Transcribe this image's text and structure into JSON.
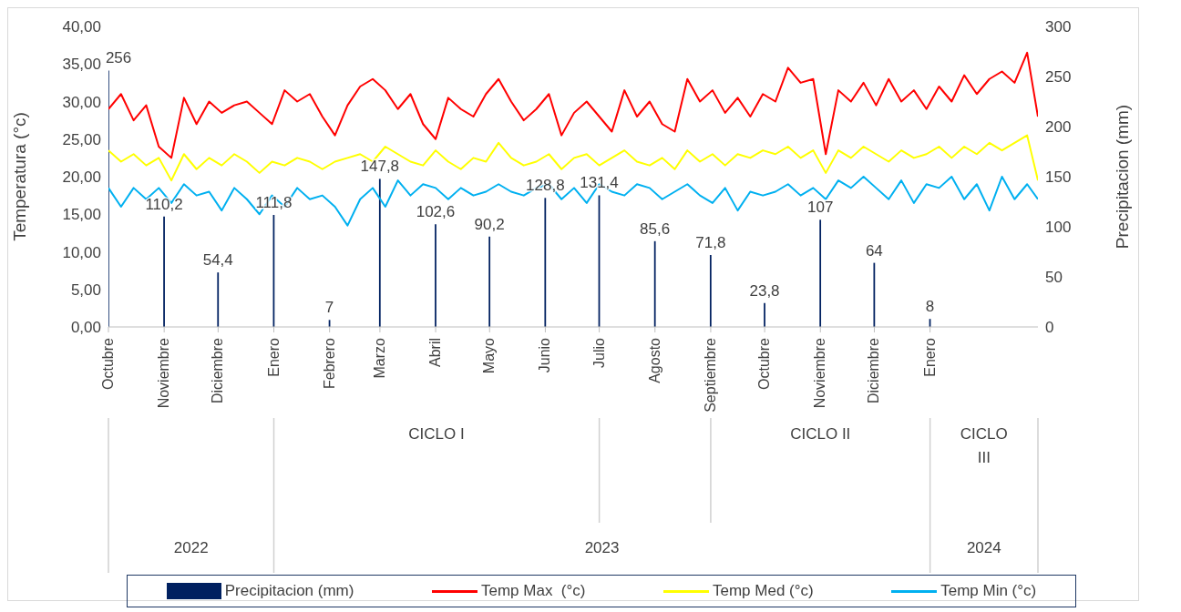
{
  "chart_data": {
    "type": "line",
    "x": [
      "2022-10-01",
      "2022-10-08",
      "2022-10-15",
      "2022-10-22",
      "2022-10-29",
      "2022-11-05",
      "2022-11-12",
      "2022-11-19",
      "2022-11-26",
      "2022-12-03",
      "2022-12-10",
      "2022-12-17",
      "2022-12-24",
      "2022-12-31",
      "2023-01-07",
      "2023-01-14",
      "2023-01-21",
      "2023-01-28",
      "2023-02-04",
      "2023-02-11",
      "2023-02-18",
      "2023-02-25",
      "2023-03-04",
      "2023-03-11",
      "2023-03-18",
      "2023-03-25",
      "2023-04-01",
      "2023-04-08",
      "2023-04-15",
      "2023-04-22",
      "2023-04-29",
      "2023-05-06",
      "2023-05-13",
      "2023-05-20",
      "2023-05-27",
      "2023-06-03",
      "2023-06-10",
      "2023-06-17",
      "2023-06-24",
      "2023-07-01",
      "2023-07-08",
      "2023-07-15",
      "2023-07-22",
      "2023-07-29",
      "2023-08-05",
      "2023-08-12",
      "2023-08-19",
      "2023-08-26",
      "2023-09-02",
      "2023-09-09",
      "2023-09-16",
      "2023-09-23",
      "2023-09-30",
      "2023-10-07",
      "2023-10-14",
      "2023-10-21",
      "2023-10-28",
      "2023-11-04",
      "2023-11-11",
      "2023-11-18",
      "2023-11-25",
      "2023-12-02",
      "2023-12-09",
      "2023-12-16",
      "2023-12-23",
      "2023-12-30",
      "2024-01-06",
      "2024-01-13",
      "2024-01-20",
      "2024-01-27",
      "2024-02-03",
      "2024-02-10",
      "2024-02-17",
      "2024-02-24",
      "2024-03-01"
    ],
    "series": [
      {
        "name": "Precipitacion (mm)",
        "type": "bar",
        "axis": "y2",
        "color": "#002060",
        "x": [
          "2022-10-01",
          "2022-11-01",
          "2022-12-01",
          "2023-01-01",
          "2023-02-01",
          "2023-03-01",
          "2023-04-01",
          "2023-05-01",
          "2023-06-01",
          "2023-07-01",
          "2023-08-01",
          "2023-09-01",
          "2023-10-01",
          "2023-11-01",
          "2023-12-01",
          "2024-01-01"
        ],
        "values": [
          256,
          110.2,
          54.4,
          111.8,
          7,
          147.8,
          102.6,
          90.2,
          128.8,
          131.4,
          85.6,
          71.8,
          23.8,
          107,
          64,
          8
        ],
        "value_labels": [
          "256",
          "110,2",
          "54,4",
          "111,8",
          "7",
          "147,8",
          "102,6",
          "90,2",
          "128,8",
          "131,4",
          "85,6",
          "71,8",
          "23,8",
          "107",
          "64",
          "8"
        ]
      },
      {
        "name": "Temp Max  (°c)",
        "color": "#ff0000",
        "values": [
          29.0,
          31.0,
          27.5,
          29.5,
          24.0,
          22.5,
          30.5,
          27.0,
          30.0,
          28.5,
          29.5,
          30.0,
          28.5,
          27.0,
          31.5,
          30.0,
          31.0,
          28.0,
          25.5,
          29.5,
          32.0,
          33.0,
          31.5,
          29.0,
          31.0,
          27.0,
          25.0,
          30.5,
          29.0,
          28.0,
          31.0,
          33.0,
          30.0,
          27.5,
          29.0,
          31.0,
          25.5,
          28.5,
          30.0,
          28.0,
          26.0,
          31.5,
          28.0,
          30.0,
          27.0,
          26.0,
          33.0,
          30.0,
          31.5,
          28.5,
          30.5,
          28.0,
          31.0,
          30.0,
          34.5,
          32.5,
          33.0,
          23.0,
          31.5,
          30.0,
          32.5,
          29.5,
          33.0,
          30.0,
          31.5,
          29.0,
          32.0,
          30.0,
          33.5,
          31.0,
          33.0,
          34.0,
          32.5,
          36.5,
          28.0
        ]
      },
      {
        "name": "Temp Med (°c)",
        "color": "#ffff00",
        "values": [
          23.5,
          22.0,
          23.0,
          21.5,
          22.5,
          19.5,
          23.0,
          21.0,
          22.5,
          21.5,
          23.0,
          22.0,
          20.5,
          22.0,
          21.5,
          22.5,
          22.0,
          21.0,
          22.0,
          22.5,
          23.0,
          22.0,
          24.0,
          23.0,
          22.0,
          21.5,
          23.5,
          22.0,
          21.0,
          22.5,
          22.0,
          24.5,
          22.5,
          21.5,
          22.0,
          23.0,
          21.0,
          22.5,
          23.0,
          21.5,
          22.5,
          23.5,
          22.0,
          21.5,
          22.5,
          21.0,
          23.5,
          22.0,
          23.0,
          21.5,
          23.0,
          22.5,
          23.5,
          23.0,
          24.0,
          22.5,
          23.5,
          20.5,
          23.5,
          22.5,
          24.0,
          23.0,
          22.0,
          23.5,
          22.5,
          23.0,
          24.0,
          22.5,
          24.0,
          23.0,
          24.5,
          23.5,
          24.5,
          25.5,
          19.5
        ]
      },
      {
        "name": "Temp Min (°c)",
        "color": "#00b0f0",
        "values": [
          18.5,
          16.0,
          18.5,
          17.0,
          18.5,
          16.5,
          19.0,
          17.5,
          18.0,
          15.5,
          18.5,
          17.0,
          15.0,
          17.5,
          16.0,
          18.5,
          17.0,
          17.5,
          16.0,
          13.5,
          17.0,
          18.5,
          16.0,
          19.5,
          17.5,
          19.0,
          18.5,
          17.0,
          18.5,
          17.5,
          18.0,
          19.0,
          18.0,
          17.5,
          18.5,
          19.0,
          17.0,
          18.5,
          16.5,
          19.0,
          18.0,
          17.5,
          19.0,
          18.5,
          17.0,
          18.0,
          19.0,
          17.5,
          16.5,
          18.5,
          15.5,
          18.0,
          17.5,
          18.0,
          19.0,
          17.5,
          18.5,
          17.0,
          19.5,
          18.5,
          20.0,
          18.5,
          17.0,
          19.5,
          16.5,
          19.0,
          18.5,
          20.0,
          17.0,
          19.0,
          15.5,
          20.0,
          17.0,
          19.0,
          17.0
        ]
      }
    ],
    "ylabel": "Temperatura (°c)",
    "y2label": "Precipitacion (mm)",
    "xlim": [
      "2022-10-01",
      "2024-03-01"
    ],
    "xticks": [
      {
        "value": "2022-10-01",
        "label": "Octubre"
      },
      {
        "value": "2022-11-01",
        "label": "Noviembre"
      },
      {
        "value": "2022-12-01",
        "label": "Diciembre"
      },
      {
        "value": "2023-01-01",
        "label": "Enero"
      },
      {
        "value": "2023-02-01",
        "label": "Febrero"
      },
      {
        "value": "2023-03-01",
        "label": "Marzo"
      },
      {
        "value": "2023-04-01",
        "label": "Abril"
      },
      {
        "value": "2023-05-01",
        "label": "Mayo"
      },
      {
        "value": "2023-06-01",
        "label": "Junio"
      },
      {
        "value": "2023-07-01",
        "label": "Julio"
      },
      {
        "value": "2023-08-01",
        "label": "Agosto"
      },
      {
        "value": "2023-09-01",
        "label": "Septiembre"
      },
      {
        "value": "2023-10-01",
        "label": "Octubre"
      },
      {
        "value": "2023-11-01",
        "label": "Noviembre"
      },
      {
        "value": "2023-12-01",
        "label": "Diciembre"
      },
      {
        "value": "2024-01-01",
        "label": "Enero"
      }
    ],
    "ylim": [
      0,
      40
    ],
    "yticks": [
      {
        "value": 0,
        "label": "0,00"
      },
      {
        "value": 5,
        "label": "5,00"
      },
      {
        "value": 10,
        "label": "10,00"
      },
      {
        "value": 15,
        "label": "15,00"
      },
      {
        "value": 20,
        "label": "20,00"
      },
      {
        "value": 25,
        "label": "25,00"
      },
      {
        "value": 30,
        "label": "30,00"
      },
      {
        "value": 35,
        "label": "35,00"
      },
      {
        "value": 40,
        "label": "40,00"
      }
    ],
    "y2lim": [
      0,
      300
    ],
    "y2ticks": [
      0,
      50,
      100,
      150,
      200,
      250,
      300
    ],
    "annotations": [
      "CICLO I",
      "CICLO II",
      "CICLO III",
      "2022",
      "2023",
      "2024"
    ],
    "legend": "bottom",
    "grid": false,
    "marker": "none",
    "line_style": "solid"
  }
}
